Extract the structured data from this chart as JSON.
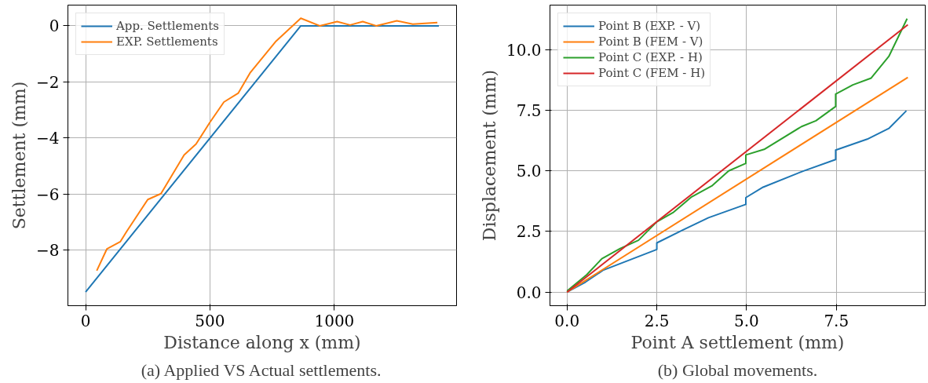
{
  "chart_data": [
    {
      "type": "line",
      "xlabel": "Distance along x (mm)",
      "ylabel": "Settlement (mm)",
      "annotations": [
        "(a) Applied VS Actual settlements."
      ],
      "xlim": [
        -71,
        1491
      ],
      "ylim": [
        -9.99,
        0.74
      ],
      "xticks": [
        0,
        500,
        1000
      ],
      "yticks": [
        {
          "value": -8,
          "label": "−8"
        },
        {
          "value": -6,
          "label": "−6"
        },
        {
          "value": -4,
          "label": "−4"
        },
        {
          "value": -2,
          "label": "−2"
        },
        0
      ],
      "grid": true,
      "legend": "top left",
      "series": [
        {
          "name": "App. Settlements",
          "color": "#1f77b4",
          "x": [
            0,
            865,
            1420
          ],
          "values": [
            -9.5,
            0,
            0
          ]
        },
        {
          "name": "EXP. Settlements",
          "color": "#ff7f0e",
          "x": [
            45,
            86,
            140,
            166,
            250,
            303,
            396,
            444,
            500,
            556,
            614,
            661,
            763,
            865,
            941,
            1011,
            1063,
            1114,
            1168,
            1251,
            1315,
            1414
          ],
          "values": [
            -8.74,
            -7.96,
            -7.7,
            -7.33,
            -6.2,
            -5.99,
            -4.61,
            -4.22,
            -3.44,
            -2.72,
            -2.4,
            -1.68,
            -0.57,
            0.27,
            0,
            0.15,
            0.03,
            0.15,
            0,
            0.18,
            0.06,
            0.12
          ]
        }
      ]
    },
    {
      "type": "line",
      "xlabel": "Point A settlement (mm)",
      "ylabel": "Displacement (mm)",
      "annotations": [
        "(b) Global movements."
      ],
      "xlim": [
        -0.475,
        9.975
      ],
      "ylim": [
        -0.56,
        11.84
      ],
      "xticks": [
        {
          "value": 0,
          "label": "0.0"
        },
        2.5,
        {
          "value": 5,
          "label": "5.0"
        },
        7.5
      ],
      "yticks": [
        {
          "value": 0,
          "label": "0.0"
        },
        2.5,
        {
          "value": 5,
          "label": "5.0"
        },
        7.5,
        {
          "value": 10,
          "label": "10.0"
        }
      ],
      "grid": true,
      "legend": "top left",
      "series": [
        {
          "name": "Point B (EXP. - V)",
          "color": "#1f77b4",
          "x": [
            0,
            0.51,
            1.0,
            2.5,
            2.5,
            3.21,
            3.94,
            4.98,
            4.98,
            5.46,
            6.57,
            7.48,
            7.48,
            8.36,
            8.96,
            9.45
          ],
          "values": [
            0,
            0.41,
            0.9,
            1.76,
            2.03,
            2.55,
            3.07,
            3.62,
            3.9,
            4.33,
            4.99,
            5.47,
            5.86,
            6.31,
            6.75,
            7.48
          ]
        },
        {
          "name": "Point B (FEM - V)",
          "color": "#ff7f0e",
          "x": [
            0,
            9.49
          ],
          "values": [
            0,
            8.86
          ]
        },
        {
          "name": "Point C (EXP. - H)",
          "color": "#2ca02c",
          "x": [
            0,
            0.55,
            0.97,
            1.48,
            1.99,
            2.5,
            2.95,
            3.47,
            4.03,
            4.5,
            4.98,
            4.98,
            5.49,
            6.53,
            6.93,
            7.48,
            7.48,
            7.96,
            8.47,
            8.96,
            9.47
          ],
          "values": [
            0.05,
            0.72,
            1.38,
            1.8,
            2.14,
            2.9,
            3.28,
            3.93,
            4.38,
            5.0,
            5.31,
            5.66,
            5.89,
            6.83,
            7.07,
            7.66,
            8.17,
            8.55,
            8.83,
            9.72,
            11.28
          ]
        },
        {
          "name": "Point C (FEM - H)",
          "color": "#d62728",
          "x": [
            0,
            9.49
          ],
          "values": [
            0,
            11.03
          ]
        }
      ]
    }
  ]
}
